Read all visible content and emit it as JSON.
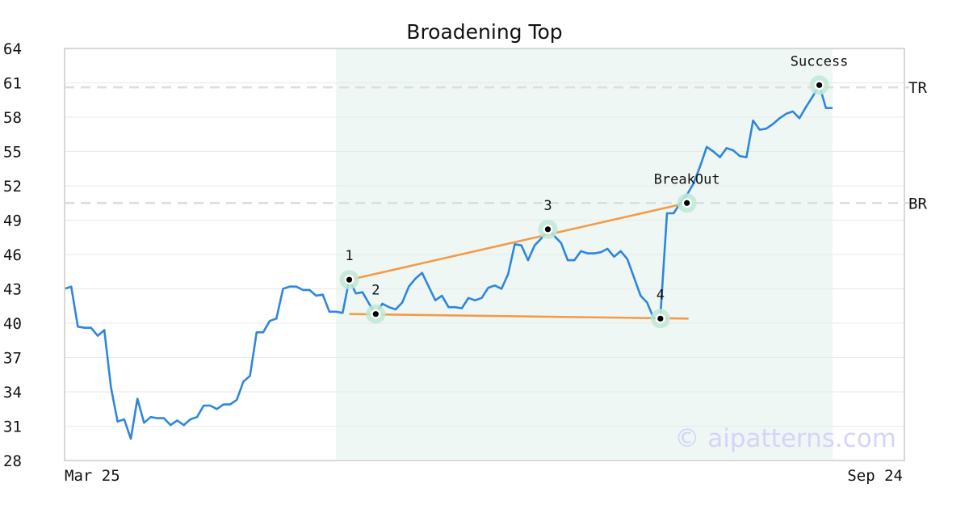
{
  "chart_data": {
    "type": "line",
    "title": "Broadening Top",
    "x_start_label": "Mar 25",
    "x_end_label": "Sep 24",
    "ylim": [
      28,
      64
    ],
    "yticks": [
      28,
      31,
      34,
      37,
      40,
      43,
      46,
      49,
      52,
      55,
      58,
      61,
      64
    ],
    "grid": true,
    "series": [
      {
        "values": [
          43.0,
          43.2,
          39.7,
          39.6,
          39.6,
          38.9,
          39.4,
          34.4,
          31.4,
          31.6,
          29.9,
          33.4,
          31.3,
          31.8,
          31.7,
          31.7,
          31.1,
          31.5,
          31.1,
          31.6,
          31.8,
          32.8,
          32.8,
          32.5,
          32.9,
          32.9,
          33.3,
          34.9,
          35.4,
          39.2,
          39.2,
          40.2,
          40.4,
          43.0,
          43.2,
          43.2,
          42.9,
          42.9,
          42.4,
          42.5,
          41.0,
          41.0,
          40.9,
          43.8,
          42.6,
          42.7,
          41.7,
          40.8,
          41.7,
          41.4,
          41.2,
          41.8,
          43.2,
          43.9,
          44.4,
          43.2,
          42.0,
          42.4,
          41.4,
          41.4,
          41.3,
          42.2,
          42.0,
          42.2,
          43.1,
          43.3,
          43.0,
          44.3,
          46.9,
          46.8,
          45.5,
          46.8,
          47.4,
          48.2,
          47.6,
          47.0,
          45.5,
          45.5,
          46.3,
          46.1,
          46.1,
          46.2,
          46.5,
          45.8,
          46.3,
          45.6,
          44.0,
          42.4,
          41.8,
          40.4,
          40.6,
          49.6,
          49.6,
          50.5,
          51.2,
          52.2,
          53.7,
          55.4,
          55.0,
          54.5,
          55.3,
          55.1,
          54.6,
          54.5,
          57.7,
          56.9,
          57.0,
          57.4,
          57.9,
          58.3,
          58.5,
          57.9,
          58.9,
          59.8,
          60.8,
          58.8,
          58.8
        ]
      }
    ],
    "shaded_region": {
      "from_index": 41,
      "to_index": 116
    },
    "trendlines": [
      {
        "from": {
          "index": 43,
          "value": 43.8
        },
        "to": {
          "index": 94,
          "value": 50.5
        },
        "color": "#f59a47"
      },
      {
        "from": {
          "index": 43,
          "value": 40.8
        },
        "to": {
          "index": 94,
          "value": 40.4
        },
        "color": "#f59a47"
      }
    ],
    "levels": [
      {
        "label": "TR",
        "value": 60.6
      },
      {
        "label": "BR",
        "value": 50.5
      }
    ],
    "annotations": [
      {
        "label": "1",
        "index": 43,
        "value": 43.8
      },
      {
        "label": "2",
        "index": 47,
        "value": 40.8
      },
      {
        "label": "3",
        "index": 73,
        "value": 48.2
      },
      {
        "label": "4",
        "index": 90,
        "value": 40.4
      },
      {
        "label": "BreakOut",
        "index": 94,
        "value": 50.5
      },
      {
        "label": "Success",
        "index": 114,
        "value": 60.8
      }
    ],
    "watermark": "© aipatterns.com",
    "colors": {
      "line": "#2e86de",
      "trend": "#f59a47",
      "shade": "#eef7f3",
      "marker_ring": "#bfe9d5",
      "level_line": "#dddddd",
      "watermark": "#d6d3fb"
    }
  }
}
